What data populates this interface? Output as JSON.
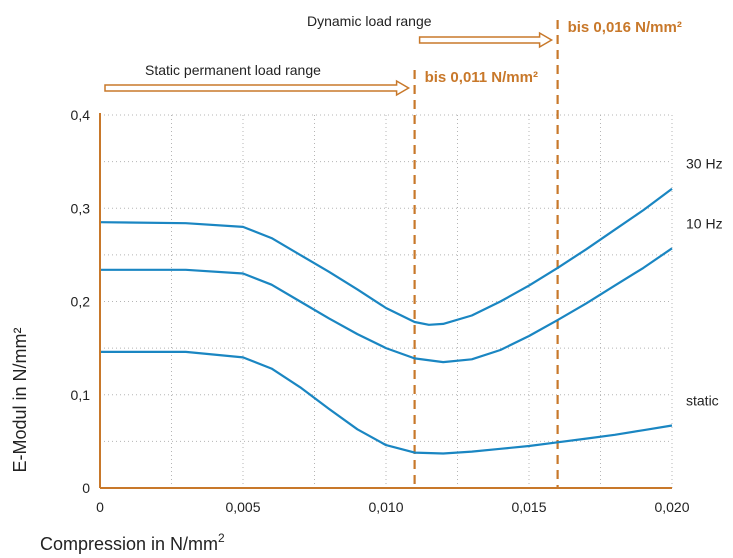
{
  "chart_data": {
    "type": "line",
    "xlabel": "Compression in N/mm",
    "xlabel_sup": "2",
    "ylabel": "E-Modul in N/mm²",
    "xlim": [
      0,
      0.02
    ],
    "ylim": [
      0,
      0.4
    ],
    "x_ticks": [
      0,
      0.005,
      0.01,
      0.015,
      0.02
    ],
    "x_tick_labels": [
      "0",
      "0,005",
      "0,010",
      "0,015",
      "0,020"
    ],
    "y_ticks": [
      0,
      0.1,
      0.2,
      0.3,
      0.4
    ],
    "y_tick_labels": [
      "0",
      "0,1",
      "0,2",
      "0,3",
      "0,4"
    ],
    "grid": true,
    "series": [
      {
        "name": "30 Hz",
        "color": "#1a86c2",
        "x": [
          0,
          0.003,
          0.005,
          0.006,
          0.007,
          0.008,
          0.009,
          0.01,
          0.011,
          0.0115,
          0.012,
          0.013,
          0.014,
          0.015,
          0.016,
          0.017,
          0.018,
          0.019,
          0.02
        ],
        "y": [
          0.285,
          0.284,
          0.28,
          0.268,
          0.25,
          0.232,
          0.213,
          0.193,
          0.178,
          0.175,
          0.176,
          0.185,
          0.2,
          0.217,
          0.236,
          0.256,
          0.277,
          0.298,
          0.321
        ]
      },
      {
        "name": "10 Hz",
        "color": "#1a86c2",
        "x": [
          0,
          0.003,
          0.005,
          0.006,
          0.007,
          0.008,
          0.009,
          0.01,
          0.011,
          0.012,
          0.013,
          0.014,
          0.015,
          0.016,
          0.017,
          0.018,
          0.019,
          0.02
        ],
        "y": [
          0.234,
          0.234,
          0.23,
          0.218,
          0.2,
          0.182,
          0.165,
          0.15,
          0.139,
          0.135,
          0.138,
          0.148,
          0.163,
          0.18,
          0.198,
          0.217,
          0.236,
          0.257
        ]
      },
      {
        "name": "static",
        "color": "#1a86c2",
        "x": [
          0,
          0.003,
          0.005,
          0.006,
          0.007,
          0.008,
          0.009,
          0.01,
          0.011,
          0.012,
          0.013,
          0.014,
          0.015,
          0.016,
          0.017,
          0.018,
          0.019,
          0.02
        ],
        "y": [
          0.146,
          0.146,
          0.14,
          0.128,
          0.108,
          0.085,
          0.063,
          0.046,
          0.038,
          0.037,
          0.039,
          0.042,
          0.045,
          0.049,
          0.053,
          0.057,
          0.062,
          0.067
        ]
      }
    ],
    "reference_lines": [
      {
        "x": 0.011,
        "label": "bis 0,011 N/mm²",
        "color": "#c8782a"
      },
      {
        "x": 0.016,
        "label": "bis 0,016 N/mm²",
        "color": "#c8782a"
      }
    ],
    "ranges": [
      {
        "label": "Static permanent load range",
        "from_x": 0,
        "to_x": 0.011
      },
      {
        "label": "Dynamic load range",
        "from_x": 0.011,
        "to_x": 0.016
      }
    ]
  },
  "colors": {
    "axis": "#c8782a",
    "series": "#1a86c2",
    "grid": "#b5b5b5"
  }
}
